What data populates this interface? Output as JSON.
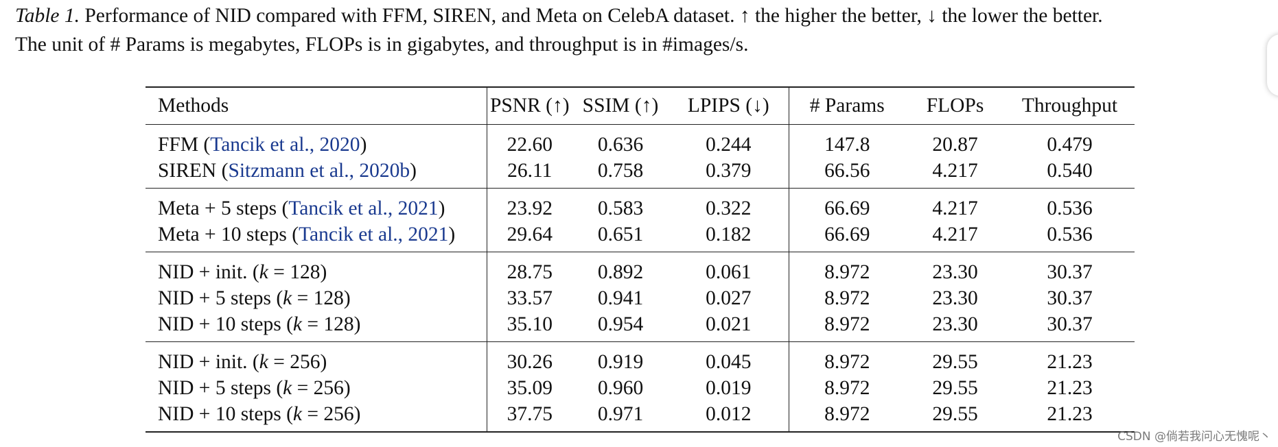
{
  "caption": {
    "label": "Table 1.",
    "line1": " Performance of NID compared with FFM, SIREN, and Meta on CelebA dataset. ↑ the higher the better, ↓ the lower the better.",
    "line2": "The unit of # Params is megabytes, FLOPs is in gigabytes, and throughput is in #images/s."
  },
  "table": {
    "headers": [
      "Methods",
      "PSNR (↑)",
      "SSIM (↑)",
      "LPIPS (↓)",
      "# Params",
      "FLOPs",
      "Throughput"
    ],
    "groups": [
      {
        "rows": [
          {
            "method": "FFM",
            "cite_open": " (",
            "cite": "Tancik et al., 2020",
            "cite_close": ")",
            "k": "",
            "k_val": "",
            "values": [
              "22.60",
              "0.636",
              "0.244",
              "147.8",
              "20.87",
              "0.479"
            ]
          },
          {
            "method": "SIREN",
            "cite_open": " (",
            "cite": "Sitzmann et al., 2020b",
            "cite_close": ")",
            "k": "",
            "k_val": "",
            "values": [
              "26.11",
              "0.758",
              "0.379",
              "66.56",
              "4.217",
              "0.540"
            ]
          }
        ]
      },
      {
        "rows": [
          {
            "method": "Meta + 5 steps",
            "cite_open": " (",
            "cite": "Tancik et al., 2021",
            "cite_close": ")",
            "k": "",
            "k_val": "",
            "values": [
              "23.92",
              "0.583",
              "0.322",
              "66.69",
              "4.217",
              "0.536"
            ]
          },
          {
            "method": "Meta + 10 steps",
            "cite_open": " (",
            "cite": "Tancik et al., 2021",
            "cite_close": ")",
            "k": "",
            "k_val": "",
            "values": [
              "29.64",
              "0.651",
              "0.182",
              "66.69",
              "4.217",
              "0.536"
            ]
          }
        ]
      },
      {
        "rows": [
          {
            "method": "NID + init. (",
            "cite_open": "",
            "cite": "",
            "cite_close": "",
            "k": "k",
            "k_val": " = 128)",
            "values": [
              "28.75",
              "0.892",
              "0.061",
              "8.972",
              "23.30",
              "30.37"
            ]
          },
          {
            "method": "NID + 5 steps (",
            "cite_open": "",
            "cite": "",
            "cite_close": "",
            "k": "k",
            "k_val": " = 128)",
            "values": [
              "33.57",
              "0.941",
              "0.027",
              "8.972",
              "23.30",
              "30.37"
            ]
          },
          {
            "method": "NID + 10 steps (",
            "cite_open": "",
            "cite": "",
            "cite_close": "",
            "k": "k",
            "k_val": " = 128)",
            "values": [
              "35.10",
              "0.954",
              "0.021",
              "8.972",
              "23.30",
              "30.37"
            ]
          }
        ]
      },
      {
        "rows": [
          {
            "method": "NID + init. (",
            "cite_open": "",
            "cite": "",
            "cite_close": "",
            "k": "k",
            "k_val": " = 256)",
            "values": [
              "30.26",
              "0.919",
              "0.045",
              "8.972",
              "29.55",
              "21.23"
            ]
          },
          {
            "method": "NID + 5 steps (",
            "cite_open": "",
            "cite": "",
            "cite_close": "",
            "k": "k",
            "k_val": " = 256)",
            "values": [
              "35.09",
              "0.960",
              "0.019",
              "8.972",
              "29.55",
              "21.23"
            ]
          },
          {
            "method": "NID + 10 steps (",
            "cite_open": "",
            "cite": "",
            "cite_close": "",
            "k": "k",
            "k_val": " = 256)",
            "values": [
              "37.75",
              "0.971",
              "0.012",
              "8.972",
              "29.55",
              "21.23"
            ]
          }
        ]
      }
    ]
  },
  "watermark": "CSDN @倘若我问心无愧呢丶"
}
